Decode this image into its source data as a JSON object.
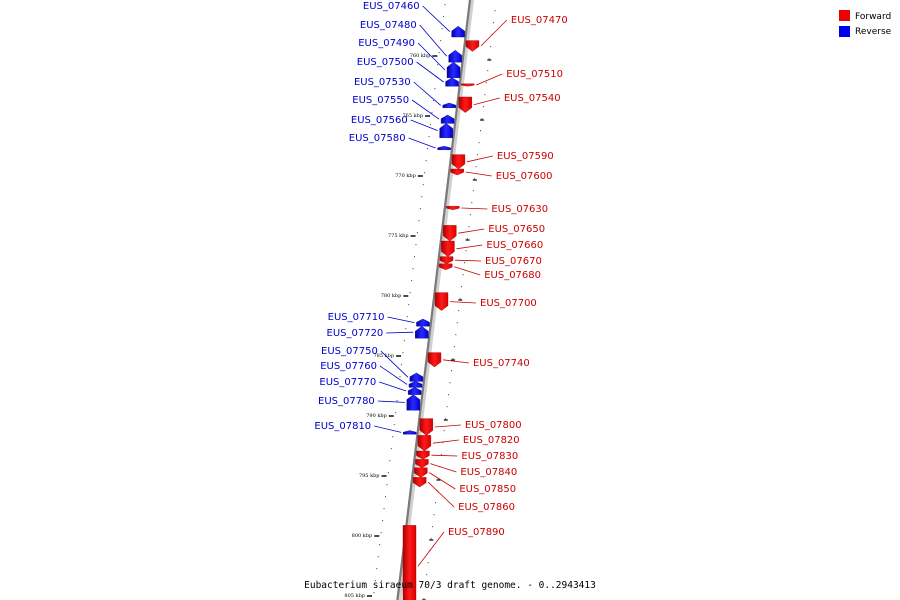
{
  "caption": "Eubacterium siraeum 70/3 draft genome. - 0..2943413",
  "legend": [
    {
      "label": "Forward",
      "color": "#ee0000"
    },
    {
      "label": "Reverse",
      "color": "#0000ee"
    }
  ],
  "ticks": [
    {
      "label": "760 kbp",
      "kbp": 760
    },
    {
      "label": "765 kbp",
      "kbp": 765
    },
    {
      "label": "770 kbp",
      "kbp": 770
    },
    {
      "label": "775 kbp",
      "kbp": 775
    },
    {
      "label": "780 kbp",
      "kbp": 780
    },
    {
      "label": "785 kbp",
      "kbp": 785
    },
    {
      "label": "790 kbp",
      "kbp": 790
    },
    {
      "label": "795 kbp",
      "kbp": 795
    },
    {
      "label": "800 kbp",
      "kbp": 800
    },
    {
      "label": "805 kbp",
      "kbp": 805
    }
  ],
  "forward_genes": [
    {
      "name": "EUS_07470",
      "start": 758.8,
      "end": 759.7
    },
    {
      "name": "EUS_07510",
      "start": 762.4,
      "end": 762.6
    },
    {
      "name": "EUS_07540",
      "start": 763.5,
      "end": 764.8
    },
    {
      "name": "EUS_07590",
      "start": 768.3,
      "end": 769.5
    },
    {
      "name": "EUS_07600",
      "start": 769.5,
      "end": 770.0
    },
    {
      "name": "EUS_07630",
      "start": 772.6,
      "end": 772.9
    },
    {
      "name": "EUS_07650",
      "start": 774.2,
      "end": 775.5
    },
    {
      "name": "EUS_07660",
      "start": 775.5,
      "end": 776.8
    },
    {
      "name": "EUS_07670",
      "start": 776.8,
      "end": 777.4
    },
    {
      "name": "EUS_07680",
      "start": 777.4,
      "end": 777.9
    },
    {
      "name": "EUS_07700",
      "start": 779.8,
      "end": 781.3
    },
    {
      "name": "EUS_07740",
      "start": 784.8,
      "end": 786.0
    },
    {
      "name": "EUS_07800",
      "start": 790.3,
      "end": 791.7
    },
    {
      "name": "EUS_07820",
      "start": 791.7,
      "end": 793.0
    },
    {
      "name": "EUS_07830",
      "start": 793.0,
      "end": 793.7
    },
    {
      "name": "EUS_07840",
      "start": 793.7,
      "end": 794.4
    },
    {
      "name": "EUS_07850",
      "start": 794.4,
      "end": 795.2
    },
    {
      "name": "EUS_07860",
      "start": 795.2,
      "end": 796.0
    },
    {
      "name": "EUS_07890",
      "start": 799.2,
      "end": 806.0
    }
  ],
  "reverse_genes": [
    {
      "name": "EUS_07460",
      "start": 757.6,
      "end": 758.5
    },
    {
      "name": "EUS_07480",
      "start": 759.6,
      "end": 760.6
    },
    {
      "name": "EUS_07490",
      "start": 760.6,
      "end": 761.9
    },
    {
      "name": "EUS_07500",
      "start": 761.9,
      "end": 762.6
    },
    {
      "name": "EUS_07530",
      "start": 764.0,
      "end": 764.4
    },
    {
      "name": "EUS_07550",
      "start": 765.0,
      "end": 765.7
    },
    {
      "name": "EUS_07560",
      "start": 765.7,
      "end": 766.9
    },
    {
      "name": "EUS_07580",
      "start": 767.6,
      "end": 767.9
    },
    {
      "name": "EUS_07710",
      "start": 782.0,
      "end": 782.6
    },
    {
      "name": "EUS_07720",
      "start": 782.6,
      "end": 783.6
    },
    {
      "name": "EUS_07750",
      "start": 786.5,
      "end": 787.2
    },
    {
      "name": "EUS_07760",
      "start": 787.2,
      "end": 787.7
    },
    {
      "name": "EUS_07770",
      "start": 787.7,
      "end": 788.3
    },
    {
      "name": "EUS_07780",
      "start": 788.3,
      "end": 789.6
    },
    {
      "name": "EUS_07810",
      "start": 791.3,
      "end": 791.6
    }
  ],
  "forward_labels_y": {
    "EUS_07470": 23,
    "EUS_07510": 77,
    "EUS_07540": 101,
    "EUS_07590": 159,
    "EUS_07600": 179,
    "EUS_07630": 212,
    "EUS_07650": 232,
    "EUS_07660": 248,
    "EUS_07670": 264,
    "EUS_07680": 278,
    "EUS_07700": 306,
    "EUS_07740": 366,
    "EUS_07800": 428,
    "EUS_07820": 443,
    "EUS_07830": 459,
    "EUS_07840": 475,
    "EUS_07850": 492,
    "EUS_07860": 510,
    "EUS_07890": 535
  },
  "reverse_labels_y": {
    "EUS_07460": 9,
    "EUS_07480": 28,
    "EUS_07490": 46,
    "EUS_07500": 65,
    "EUS_07530": 85,
    "EUS_07550": 103,
    "EUS_07560": 123,
    "EUS_07580": 141,
    "EUS_07710": 320,
    "EUS_07720": 336,
    "EUS_07750": 354,
    "EUS_07760": 369,
    "EUS_07770": 385,
    "EUS_07780": 404,
    "EUS_07810": 429
  }
}
